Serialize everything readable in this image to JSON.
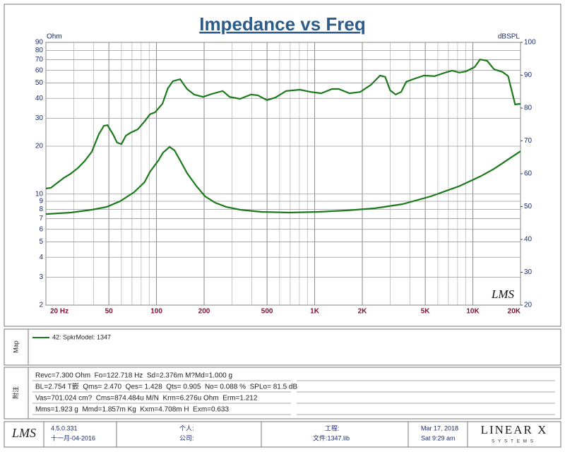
{
  "chart_data": {
    "type": "line",
    "title": "Impedance vs Freq",
    "y_label": "Ohm",
    "y2_label": "dBSPL",
    "watermark": "LMS",
    "xlog": true,
    "ylog": true,
    "grid": true,
    "xlim": [
      20,
      20000
    ],
    "ylim": [
      2,
      90
    ],
    "y2lim": [
      20,
      100
    ],
    "xticks": [
      {
        "value": 20,
        "label": "20 Hz"
      },
      50,
      100,
      200,
      500,
      {
        "value": 1000,
        "label": "1K"
      },
      {
        "value": 2000,
        "label": "2K"
      },
      {
        "value": 5000,
        "label": "5K"
      },
      {
        "value": 10000,
        "label": "10K"
      },
      {
        "value": 20000,
        "label": "20K"
      }
    ],
    "xminor_ticks": [
      30,
      40,
      60,
      70,
      80,
      90,
      300,
      400,
      600,
      700,
      800,
      900,
      3000,
      4000,
      6000,
      7000,
      8000,
      9000
    ],
    "yticks": [
      2,
      3,
      4,
      5,
      6,
      7,
      8,
      9,
      10,
      20,
      30,
      40,
      50,
      60,
      70,
      80,
      90
    ],
    "y2ticks": [
      20,
      30,
      40,
      50,
      60,
      70,
      80,
      90,
      100
    ],
    "series": [
      {
        "color": "#1c7a1c",
        "axis": "y",
        "x": [
          20,
          28.7,
          39,
          48.5,
          58.8,
          72.3,
          84,
          91,
          103,
          110,
          121,
          130,
          141,
          156,
          179,
          203,
          235,
          276,
          338,
          460,
          690,
          1050,
          1580,
          2390,
          3590,
          5420,
          8190,
          11140,
          13600,
          20000
        ],
        "values": [
          7.48,
          7.64,
          7.96,
          8.3,
          9.0,
          10.28,
          11.87,
          13.8,
          16.3,
          18.2,
          19.8,
          18.8,
          16.3,
          13.55,
          11.2,
          9.67,
          8.82,
          8.3,
          7.96,
          7.72,
          7.64,
          7.72,
          7.88,
          8.13,
          8.64,
          9.67,
          11.2,
          12.9,
          14.4,
          18.6
        ]
      },
      {
        "color": "#1c7a1c",
        "axis": "y2",
        "x": [
          20,
          21.5,
          23.3,
          25.9,
          28.7,
          31.8,
          35.2,
          39,
          43.2,
          46.5,
          49,
          53.1,
          56.3,
          60,
          64,
          68.6,
          76,
          84,
          91,
          98,
          109,
          118,
          127,
          141,
          156,
          173,
          197,
          224,
          262,
          290,
          338,
          395,
          437,
          499,
          565,
          660,
          730,
          808,
          943,
          1100,
          1287,
          1420,
          1660,
          1940,
          2270,
          2590,
          2790,
          3000,
          3250,
          3520,
          3790,
          4190,
          4900,
          5720,
          6680,
          7400,
          8200,
          9080,
          10260,
          11100,
          12300,
          13600,
          15400,
          16700,
          18500,
          20000
        ],
        "values": [
          55.5,
          55.7,
          57.0,
          58.7,
          60.0,
          61.7,
          63.9,
          66.7,
          72.0,
          74.6,
          74.8,
          72.0,
          69.5,
          69.0,
          71.6,
          72.5,
          73.5,
          75.9,
          78.1,
          78.7,
          81.3,
          86.0,
          88.2,
          88.8,
          85.8,
          84.1,
          83.4,
          84.3,
          85.2,
          83.4,
          82.8,
          84.1,
          83.9,
          82.4,
          83.2,
          85.2,
          85.4,
          85.6,
          84.9,
          84.5,
          85.8,
          85.8,
          84.5,
          84.9,
          87.1,
          89.9,
          89.5,
          85.4,
          84.1,
          84.9,
          88.0,
          88.8,
          89.9,
          89.7,
          90.8,
          91.4,
          90.8,
          91.2,
          92.5,
          94.8,
          94.4,
          91.8,
          91.0,
          89.7,
          81.1,
          81.3
        ]
      }
    ]
  },
  "map": {
    "label": "Map",
    "legend": "42: SpkrModel: 1347"
  },
  "notes": {
    "label": "附注",
    "lines": [
      "Revc=7.300 Ohm  Fo=122.718 Hz  Sd=2.376m M?Md=1.000 g",
      "BL=2.754 T嵌  Qms= 2.470  Qes= 1.428  Qts= 0.905  No= 0.088 %  SPLo= 81.5 dB",
      "Vas=701.024 cm?  Cms=874.484u M/N  Krm=6.276u Ohm  Erm=1.212",
      "Mms=1.923 g  Mmd=1.857m Kg  Kxm=4.708m H  Exm=0.633"
    ]
  },
  "footer": {
    "logo": "LMS",
    "version": "4.5.0.331",
    "build_date": "十一月-04-2016",
    "personal": "个人:",
    "company": "公司:",
    "project": "工程:",
    "file": "文件:1347.lib",
    "date": "Mar 17, 2018",
    "time": "Sat  9:29 am",
    "brand": "LINEAR X",
    "brand_sub": "SYSTEMS"
  }
}
